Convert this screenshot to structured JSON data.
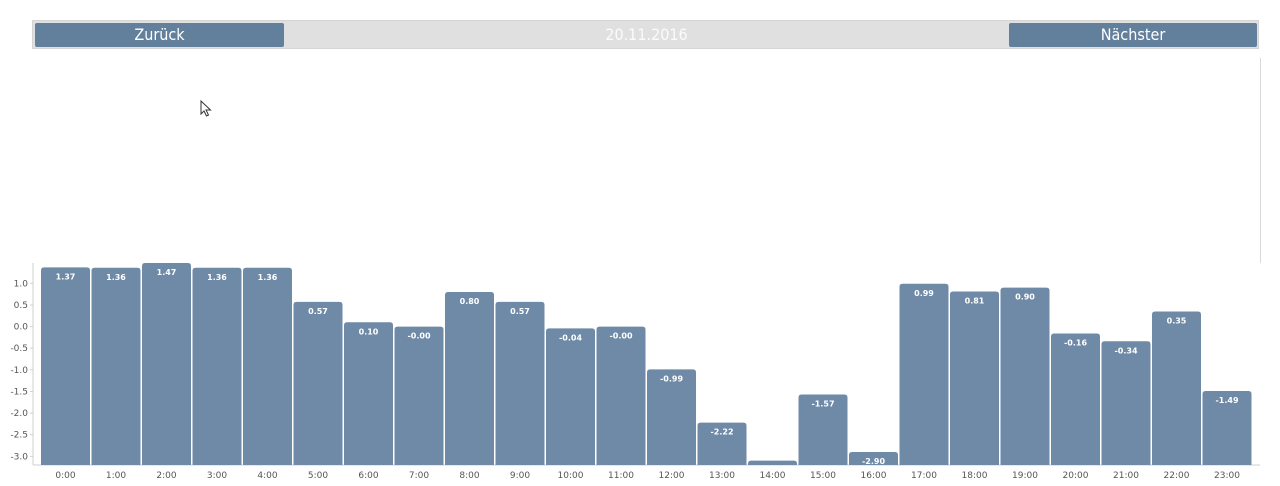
{
  "nav": {
    "prev_label": "Zurück",
    "date": "20.11.2016",
    "next_label": "Nächster"
  },
  "colors": {
    "bar": "#6f8aa7",
    "button": "#627f9c",
    "nav_background": "#e0e0e0"
  },
  "chart_data": {
    "type": "bar",
    "categories": [
      "0:00",
      "1:00",
      "2:00",
      "3:00",
      "4:00",
      "5:00",
      "6:00",
      "7:00",
      "8:00",
      "9:00",
      "10:00",
      "11:00",
      "12:00",
      "13:00",
      "14:00",
      "15:00",
      "16:00",
      "17:00",
      "18:00",
      "19:00",
      "20:00",
      "21:00",
      "22:00",
      "23:00"
    ],
    "values": [
      1.37,
      1.36,
      1.47,
      1.36,
      1.36,
      0.57,
      0.1,
      -0.0,
      0.8,
      0.57,
      -0.04,
      -0.0,
      -0.99,
      -2.22,
      -3.1,
      -1.57,
      -2.9,
      0.99,
      0.81,
      0.9,
      -0.16,
      -0.34,
      0.35,
      -1.49
    ],
    "data_labels": [
      "1.37",
      "1.36",
      "1.47",
      "1.36",
      "1.36",
      "0.57",
      "0.10",
      "-0.00",
      "0.80",
      "0.57",
      "-0.04",
      "-0.00",
      "-0.99",
      "-2.22",
      "",
      "-1.57",
      "-2.90",
      "0.99",
      "0.81",
      "0.90",
      "-0.16",
      "-0.34",
      "0.35",
      "-1.49"
    ],
    "yticks": [
      1.0,
      0.5,
      0.0,
      -0.5,
      -1.0,
      -1.5,
      -2.0,
      -2.5,
      -3.0
    ],
    "ytick_labels": [
      "1.0",
      "0.5",
      "0.0",
      "-0.5",
      "-1.0",
      "-1.5",
      "-2.0",
      "-2.5",
      "-3.0"
    ],
    "ylim": [
      -3.2,
      1.47
    ],
    "grid": false,
    "legend": "none"
  }
}
